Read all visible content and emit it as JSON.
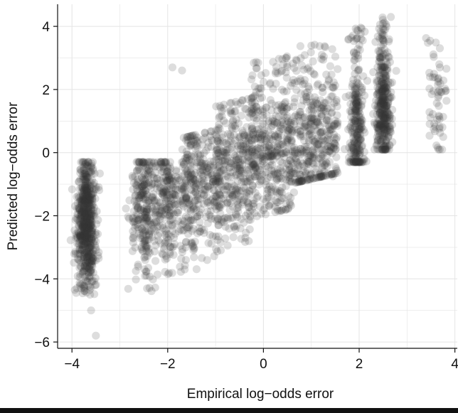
{
  "chart_data": {
    "type": "scatter",
    "title": "",
    "xlabel": "Empirical log−odds error",
    "ylabel": "Predicted log−odds error",
    "xlim": [
      -4.3,
      4.05
    ],
    "ylim": [
      -6.2,
      4.7
    ],
    "x_ticks": [
      -4,
      -2,
      0,
      2,
      4
    ],
    "x_tick_labels": [
      "−4",
      "−2",
      "0",
      "2",
      "4"
    ],
    "y_ticks": [
      -6,
      -4,
      -2,
      0,
      2,
      4
    ],
    "y_tick_labels": [
      "−6",
      "−4",
      "−2",
      "0",
      "2",
      "4"
    ],
    "grid": true,
    "legend": "none",
    "marker_color": "#333333",
    "marker_opacity": 0.17,
    "series": [
      {
        "clusters": [
          {
            "x": -3.7,
            "x_spread": 0.18,
            "y_center": -2.2,
            "y_min": -4.5,
            "y_max": -0.3,
            "n": 650
          },
          {
            "x": -2.5,
            "x_spread": 0.25,
            "y_center": -1.6,
            "y_min": -4.4,
            "y_max": -0.3,
            "n": 260
          },
          {
            "x": -2.0,
            "x_spread": 0.28,
            "y_center": -1.4,
            "y_min": -3.9,
            "y_max": -0.3,
            "n": 230
          },
          {
            "x": -1.3,
            "x_spread": 0.4,
            "y_center": -0.9,
            "y_min": -3.7,
            "y_max": 0.6,
            "n": 320
          },
          {
            "x": -0.6,
            "x_spread": 0.4,
            "y_center": -0.5,
            "y_min": -3.0,
            "y_max": 1.6,
            "n": 330
          },
          {
            "x": 0.2,
            "x_spread": 0.45,
            "y_center": 0.1,
            "y_min": -1.9,
            "y_max": 3.0,
            "n": 420
          },
          {
            "x": 1.1,
            "x_spread": 0.45,
            "y_center": 0.3,
            "y_min": -0.8,
            "y_max": 3.6,
            "n": 380
          },
          {
            "x": 1.95,
            "x_spread": 0.14,
            "y_center": 0.7,
            "y_min": -0.3,
            "y_max": 4.0,
            "n": 260
          },
          {
            "x": 2.5,
            "x_spread": 0.14,
            "y_center": 1.4,
            "y_min": 0.1,
            "y_max": 4.3,
            "n": 380
          },
          {
            "x": 3.65,
            "x_spread": 0.18,
            "y_center": 1.4,
            "y_min": 0.1,
            "y_max": 3.9,
            "n": 60
          }
        ],
        "outliers": [
          {
            "x": -3.6,
            "y": -5.0
          },
          {
            "x": -3.5,
            "y": -5.8
          },
          {
            "x": -1.9,
            "y": 2.7
          },
          {
            "x": -1.7,
            "y": 2.6
          },
          {
            "x": 1.45,
            "y": -0.75
          },
          {
            "x": -3.9,
            "y": -1.4
          }
        ]
      }
    ]
  }
}
